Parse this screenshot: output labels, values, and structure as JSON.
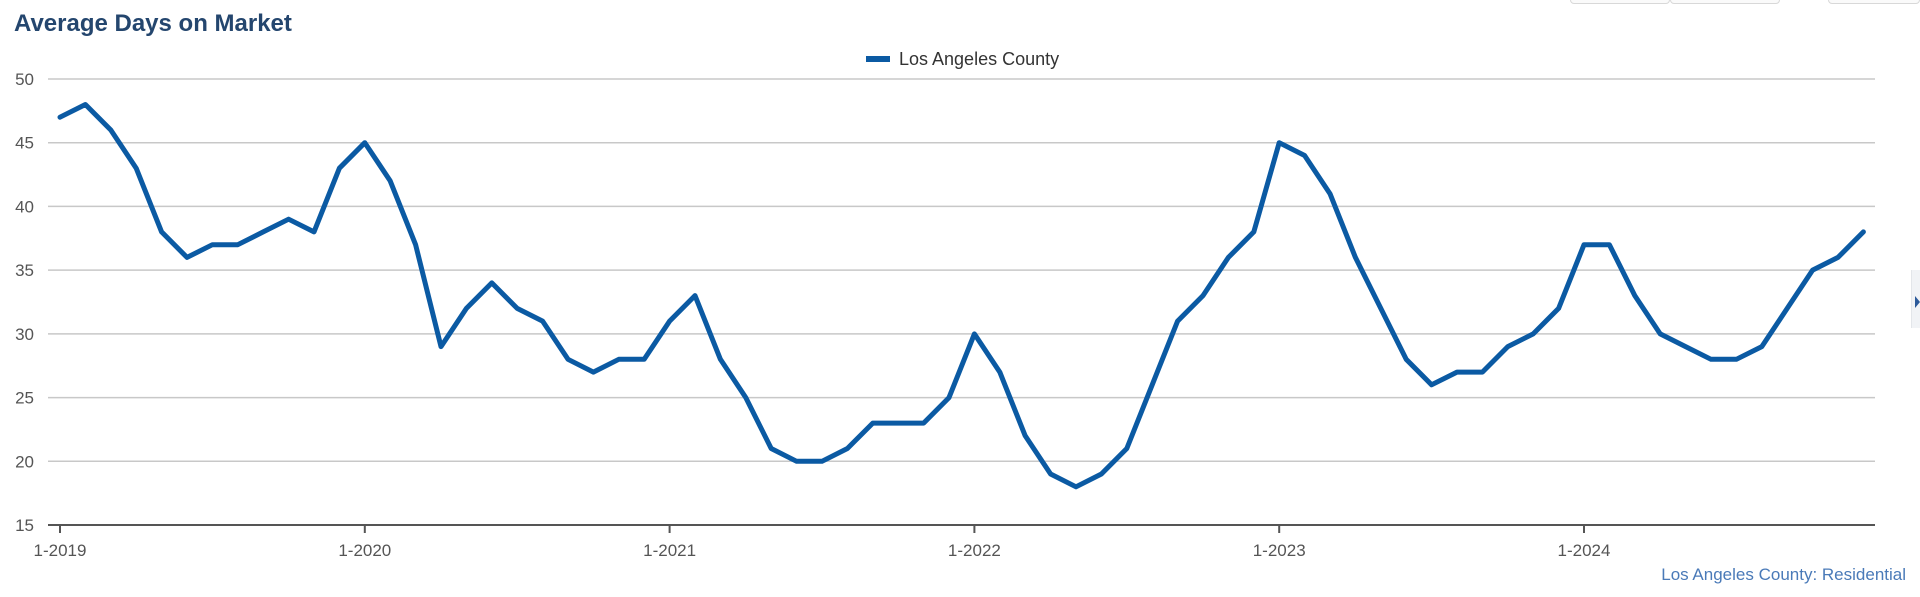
{
  "title": "Average Days on Market",
  "credit": "Los Angeles County: Residential",
  "colors": {
    "series": "#0b5aa3",
    "title": "#24466e",
    "grid": "#c8c8c8",
    "axis": "#555555"
  },
  "chart_data": {
    "type": "line",
    "title": "Average Days on Market",
    "xlabel": "",
    "ylabel": "",
    "ylim": [
      15,
      50
    ],
    "yticks": [
      15,
      20,
      25,
      30,
      35,
      40,
      45,
      50
    ],
    "xticks": [
      "1-2019",
      "1-2020",
      "1-2021",
      "1-2022",
      "1-2023",
      "1-2024"
    ],
    "grid": true,
    "legend": "top-center",
    "series": [
      {
        "name": "Los Angeles County",
        "color": "#0b5aa3",
        "start": "1-2019",
        "frequency": "monthly",
        "values": [
          47,
          48,
          46,
          43,
          38,
          36,
          37,
          37,
          38,
          39,
          38,
          43,
          45,
          42,
          37,
          29,
          32,
          34,
          32,
          31,
          28,
          27,
          28,
          28,
          31,
          33,
          28,
          25,
          21,
          20,
          20,
          21,
          23,
          23,
          23,
          25,
          30,
          27,
          22,
          19,
          18,
          19,
          21,
          26,
          31,
          33,
          36,
          38,
          45,
          44,
          41,
          36,
          32,
          28,
          26,
          27,
          27,
          29,
          30,
          32,
          37,
          37,
          33,
          30,
          29,
          28,
          28,
          29,
          32,
          35,
          36,
          38
        ]
      }
    ]
  }
}
